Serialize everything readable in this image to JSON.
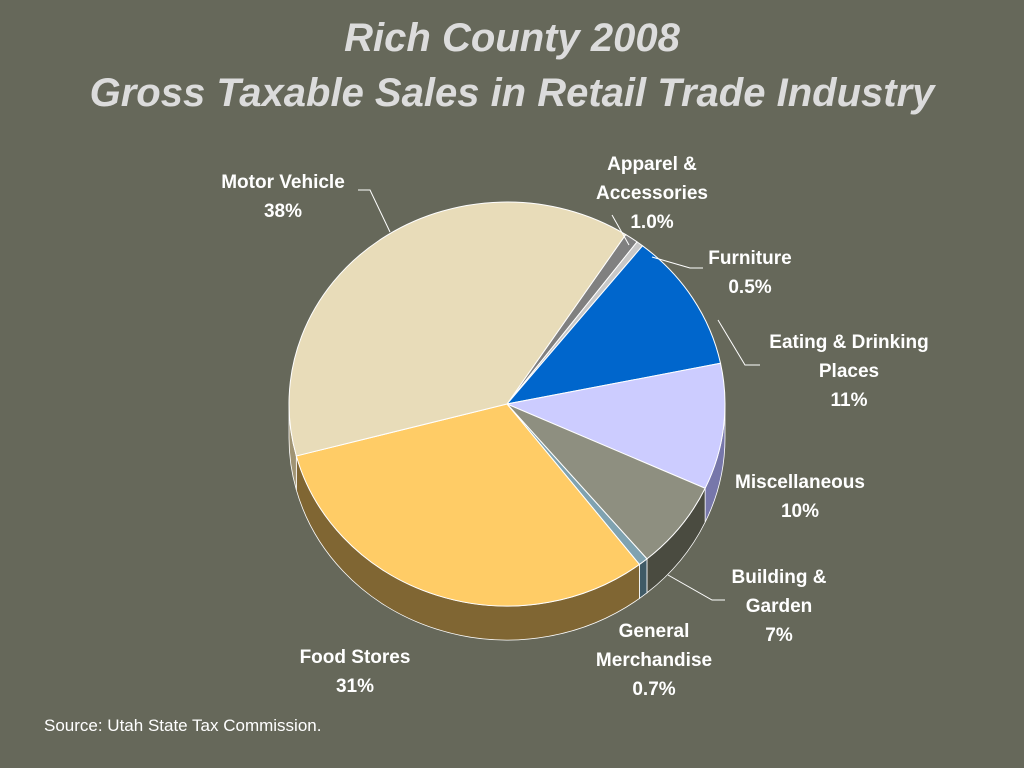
{
  "chart_data": {
    "type": "pie",
    "title": "Rich County 2008",
    "subtitle": "Gross Taxable Sales in Retail Trade Industry",
    "slices": [
      {
        "key": "apparel",
        "lines": [
          "Apparel &",
          "Accessories"
        ],
        "value": 1.0,
        "value_label": "1.0%",
        "color": "#808080",
        "side_color": "#5a5a5a"
      },
      {
        "key": "furniture",
        "lines": [
          "Furniture"
        ],
        "value": 0.5,
        "value_label": "0.5%",
        "color": "#c8c8c8",
        "side_color": "#8c8c8c"
      },
      {
        "key": "eating",
        "lines": [
          "Eating & Drinking",
          "Places"
        ],
        "value": 11,
        "value_label": "11%",
        "color": "#0066cc",
        "side_color": "#004488"
      },
      {
        "key": "misc",
        "lines": [
          "Miscellaneous"
        ],
        "value": 10,
        "value_label": "10%",
        "color": "#ccccff",
        "side_color": "#7777aa"
      },
      {
        "key": "building",
        "lines": [
          "Building &",
          "Garden"
        ],
        "value": 7,
        "value_label": "7%",
        "color": "#8e8f80",
        "side_color": "#4a4b40"
      },
      {
        "key": "general",
        "lines": [
          "General",
          "Merchandise"
        ],
        "value": 0.7,
        "value_label": "0.7%",
        "color": "#7fa2b0",
        "side_color": "#3f5a66"
      },
      {
        "key": "food",
        "lines": [
          "Food Stores"
        ],
        "value": 31,
        "value_label": "31%",
        "color": "#ffcc66",
        "side_color": "#806633"
      },
      {
        "key": "motor",
        "lines": [
          "Motor Vehicle"
        ],
        "value": 38,
        "value_label": "38%",
        "color": "#e8dcb9",
        "side_color": "#a09474"
      }
    ],
    "legend": "none"
  },
  "source": "Source: Utah State Tax Commission."
}
